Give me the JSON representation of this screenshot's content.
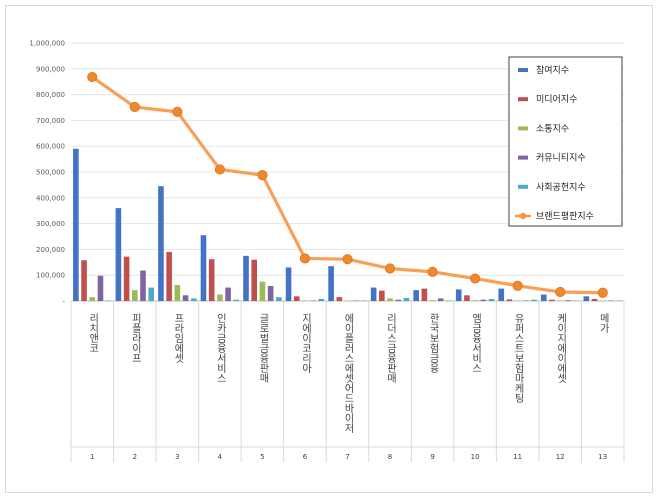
{
  "chart_data": {
    "type": "bar",
    "title": "",
    "xlabel": "",
    "ylabel": "",
    "ylim": [
      0,
      1000000
    ],
    "yticks": [
      "-",
      "100,000",
      "200,000",
      "300,000",
      "400,000",
      "500,000",
      "600,000",
      "700,000",
      "800,000",
      "900,000",
      "1,000,000"
    ],
    "categories": [
      "리치앤코",
      "피플라이프",
      "프라임에셋",
      "인카금융서비스",
      "글로벌금융판매",
      "지에이코리아",
      "에이플러스에셋어드바이저",
      "리더스금융판매",
      "한국보험금융",
      "엠금융서비스",
      "유퍼스트보험마케팅",
      "케이지에이에셋",
      "메가"
    ],
    "indices": [
      "1",
      "2",
      "3",
      "4",
      "5",
      "6",
      "7",
      "8",
      "9",
      "10",
      "11",
      "12",
      "13"
    ],
    "series": [
      {
        "name": "참여지수",
        "color": "#4472c4",
        "values": [
          590000,
          360000,
          445000,
          255000,
          175000,
          130000,
          135000,
          52000,
          42000,
          45000,
          48000,
          25000,
          18000
        ]
      },
      {
        "name": "미디어지수",
        "color": "#c0504d",
        "values": [
          158000,
          172000,
          190000,
          162000,
          160000,
          18000,
          15000,
          40000,
          48000,
          22000,
          6000,
          5000,
          8000
        ]
      },
      {
        "name": "소통지수",
        "color": "#9bbb59",
        "values": [
          15000,
          42000,
          62000,
          25000,
          75000,
          2000,
          2000,
          10000,
          3000,
          3000,
          2000,
          2000,
          2000
        ]
      },
      {
        "name": "커뮤니티지수",
        "color": "#8064a2",
        "values": [
          98000,
          118000,
          22000,
          52000,
          58000,
          2000,
          2000,
          5000,
          10000,
          5000,
          2000,
          3000,
          2000
        ]
      },
      {
        "name": "사회공헌지수",
        "color": "#4bacc6",
        "values": [
          2000,
          52000,
          10000,
          5000,
          15000,
          8000,
          2000,
          12000,
          2000,
          8000,
          5000,
          2000,
          2000
        ]
      }
    ],
    "line_series": {
      "name": "브랜드평판지수",
      "color": "#f79646",
      "values": [
        868000,
        752000,
        733000,
        510000,
        488000,
        165000,
        162000,
        126000,
        113000,
        87000,
        59000,
        35000,
        32000
      ]
    },
    "legend_position": "top-right"
  }
}
